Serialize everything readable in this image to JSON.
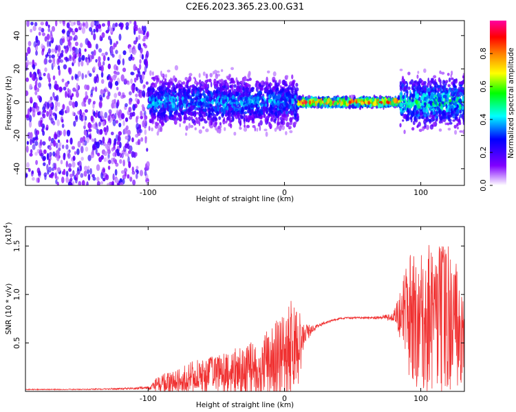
{
  "title": "C2E6.2023.365.23.00.G31",
  "colorbar": {
    "label": "Normalized spectral amplitude",
    "ticks": [
      "0.0",
      "0.2",
      "0.4",
      "0.6",
      "0.8"
    ],
    "tick_values": [
      0.0,
      0.2,
      0.4,
      0.6,
      0.8
    ],
    "range": [
      0,
      1
    ],
    "colormap": [
      "#ffffff",
      "#8000ff",
      "#0000ff",
      "#00ffff",
      "#00ff00",
      "#ffff00",
      "#ff8000",
      "#ff0000",
      "#ff00a0"
    ]
  },
  "chart_data": [
    {
      "type": "heatmap",
      "title": "C2E6.2023.365.23.00.G31",
      "xlabel": "Height of straight line (km)",
      "ylabel": "Frequency (Hz)",
      "xlim": [
        -190,
        132
      ],
      "ylim": [
        -50,
        49
      ],
      "xticks": [
        -100,
        0,
        100
      ],
      "yticks": [
        -40,
        -20,
        0,
        20,
        40
      ],
      "xtick_labels": [
        "-100",
        "0",
        "100"
      ],
      "ytick_labels": [
        "-40",
        "-20",
        "0",
        "20",
        "40"
      ],
      "regions": [
        {
          "x": [
            -190,
            -100
          ],
          "description": "broadband noise, amplitude ~0.05-0.15"
        },
        {
          "x": [
            -100,
            10
          ],
          "center_hz": 0,
          "spread_hz": 12,
          "peak_amplitude": 0.35
        },
        {
          "x": [
            10,
            85
          ],
          "center_hz": 0,
          "spread_hz": 2,
          "peak_amplitude": 0.9
        },
        {
          "x": [
            85,
            132
          ],
          "center_hz": 0,
          "spread_hz": 12,
          "peak_amplitude": 0.45
        }
      ]
    },
    {
      "type": "line",
      "xlabel": "Height of straight line (km)",
      "ylabel": "SNR (10 * v/v)",
      "y_multiplier": "(x10",
      "y_multiplier_exp": "4",
      "y_multiplier_close": ")",
      "xlim": [
        -190,
        132
      ],
      "ylim": [
        0,
        1.7
      ],
      "xticks": [
        -100,
        0,
        100
      ],
      "yticks": [
        0.5,
        1.0,
        1.5
      ],
      "xtick_labels": [
        "-100",
        "0",
        "100"
      ],
      "ytick_labels": [
        "0.5",
        "1.0",
        "1.5"
      ],
      "color": "#f03030",
      "series": [
        {
          "x": [
            -190,
            -150,
            -110,
            -100,
            -95,
            -90,
            -85,
            -80,
            -75,
            -70,
            -60,
            -50,
            -40,
            -30,
            -20,
            -10,
            0,
            5,
            10,
            12,
            15,
            20,
            25,
            30,
            35,
            40,
            50,
            60,
            70,
            80,
            85,
            88,
            90,
            95,
            100,
            105,
            110,
            120,
            125,
            132
          ],
          "values": [
            0.02,
            0.02,
            0.03,
            0.04,
            0.06,
            0.08,
            0.09,
            0.1,
            0.12,
            0.14,
            0.16,
            0.18,
            0.2,
            0.22,
            0.25,
            0.3,
            0.38,
            0.45,
            0.5,
            0.52,
            0.58,
            0.64,
            0.68,
            0.71,
            0.73,
            0.75,
            0.76,
            0.76,
            0.76,
            0.77,
            0.78,
            0.8,
            0.8,
            0.75,
            0.7,
            0.75,
            0.78,
            0.75,
            0.72,
            0.7
          ],
          "noise_amplitude": [
            0.005,
            0.005,
            0.01,
            0.02,
            0.07,
            0.09,
            0.12,
            0.12,
            0.14,
            0.16,
            0.18,
            0.2,
            0.22,
            0.26,
            0.3,
            0.35,
            0.5,
            0.5,
            0.45,
            0.3,
            0.12,
            0.04,
            0.02,
            0.015,
            0.01,
            0.01,
            0.01,
            0.01,
            0.02,
            0.05,
            0.25,
            0.5,
            0.6,
            0.7,
            0.75,
            0.8,
            0.8,
            0.75,
            0.7,
            0.6
          ]
        }
      ]
    }
  ]
}
